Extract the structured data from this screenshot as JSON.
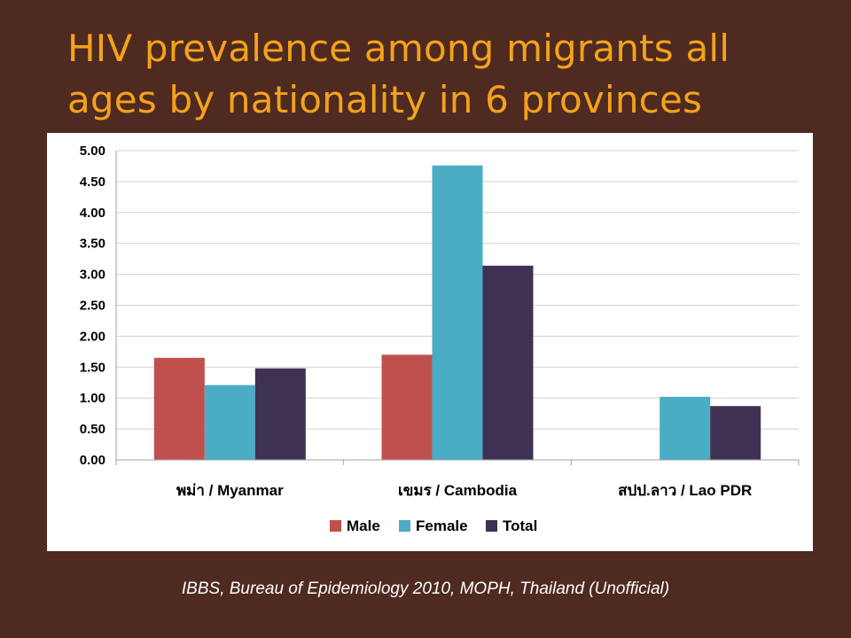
{
  "slide": {
    "title": "HIV prevalence among migrants all\nages by nationality in 6 provinces",
    "source_note": "IBBS, Bureau of Epidemiology 2010, MOPH, Thailand  (Unofficial)"
  },
  "chart_data": {
    "type": "bar",
    "categories": [
      "พม่า / Myanmar",
      "เขมร / Cambodia",
      "สปป.ลาว / Lao PDR"
    ],
    "series": [
      {
        "name": "Male",
        "color": "#c0504d",
        "values": [
          1.65,
          1.7,
          null
        ]
      },
      {
        "name": "Female",
        "color": "#4bacc6",
        "values": [
          1.21,
          4.76,
          1.02
        ]
      },
      {
        "name": "Total",
        "color": "#3f3151",
        "values": [
          1.48,
          3.14,
          0.87
        ]
      }
    ],
    "y_ticks": [
      "0.00",
      "0.50",
      "1.00",
      "1.50",
      "2.00",
      "2.50",
      "3.00",
      "3.50",
      "4.00",
      "4.50",
      "5.00"
    ],
    "ylim": [
      0,
      5
    ],
    "grid": true,
    "legend_position": "bottom"
  }
}
